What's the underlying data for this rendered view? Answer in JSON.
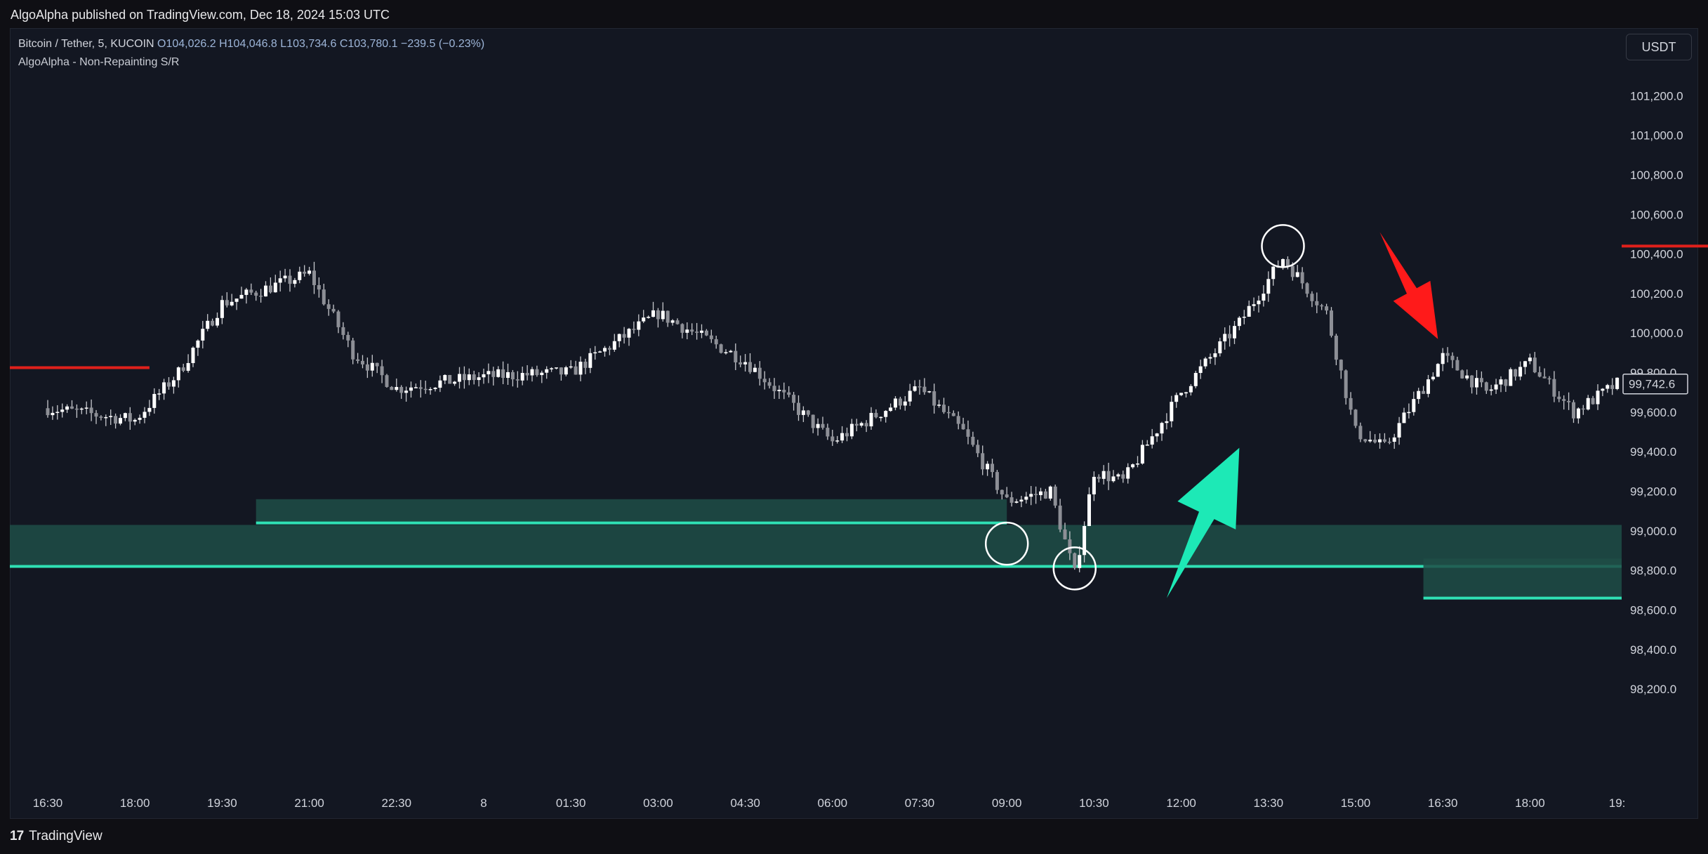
{
  "header": {
    "published": "AlgoAlpha published on TradingView.com, Dec 18, 2024 15:03 UTC"
  },
  "legend": {
    "symbol": "Bitcoin / Tether, 5, KUCOIN",
    "open": "O104,026.2",
    "high": "H104,046.8",
    "low": "L103,734.6",
    "close": "C103,780.1",
    "change": "−239.5 (−0.23%)",
    "indicator": "AlgoAlpha - Non-Repainting S/R"
  },
  "currency": "USDT",
  "footer": {
    "brand": "TradingView",
    "logo": "17"
  },
  "colors": {
    "background": "#131722",
    "resistance": "#e0201b",
    "support": "#2fe0b4",
    "support_zone": "#1f4d47",
    "candle": "#c7c9ce",
    "arrow_up": "#1de9b6",
    "arrow_down": "#ff1a1a",
    "circle": "#ffffff"
  },
  "chart_data": {
    "type": "candlestick",
    "price_axis": {
      "ticks": [
        "101,200.0",
        "101,000.0",
        "100,800.0",
        "100,600.0",
        "100,400.0",
        "100,200.0",
        "100,000.0",
        "99,800.0",
        "99,600.0",
        "99,400.0",
        "99,200.0",
        "99,000.0",
        "98,800.0",
        "98,600.0",
        "98,400.0",
        "98,200.0"
      ],
      "tick_values": [
        101200,
        101000,
        100800,
        100600,
        100400,
        100200,
        100000,
        99800,
        99600,
        99400,
        99200,
        99000,
        98800,
        98600,
        98400,
        98200
      ],
      "range": [
        98000,
        101400
      ]
    },
    "time_axis": {
      "ticks": [
        "16:30",
        "18:00",
        "19:30",
        "21:00",
        "22:30",
        "8",
        "01:30",
        "03:00",
        "04:30",
        "06:00",
        "07:30",
        "09:00",
        "10:30",
        "12:00",
        "13:30",
        "15:00",
        "16:30",
        "18:00",
        "19:"
      ],
      "range": [
        "16:30",
        "19:"
      ]
    },
    "last_price": "99,742.6",
    "last_price_value": 99742.6,
    "path": [
      [
        "16:30",
        99620
      ],
      [
        "18:00",
        99560
      ],
      [
        "18:45",
        99800
      ],
      [
        "19:30",
        100150
      ],
      [
        "21:00",
        100300
      ],
      [
        "21:45",
        99900
      ],
      [
        "22:30",
        99720
      ],
      [
        "8",
        99780
      ],
      [
        "01:30",
        99800
      ],
      [
        "02:30",
        100000
      ],
      [
        "03:00",
        100100
      ],
      [
        "04:30",
        99860
      ],
      [
        "06:00",
        99450
      ],
      [
        "07:30",
        99720
      ],
      [
        "08:15",
        99500
      ],
      [
        "09:00",
        99150
      ],
      [
        "09:45",
        99200
      ],
      [
        "10:10",
        98780
      ],
      [
        "10:30",
        99300
      ],
      [
        "11:00",
        99250
      ],
      [
        "12:00",
        99700
      ],
      [
        "13:00",
        100050
      ],
      [
        "13:45",
        100380
      ],
      [
        "14:30",
        100100
      ],
      [
        "15:00",
        99500
      ],
      [
        "15:30",
        99420
      ],
      [
        "16:30",
        99880
      ],
      [
        "17:15",
        99700
      ],
      [
        "18:00",
        99850
      ],
      [
        "18:45",
        99600
      ],
      [
        "19:",
        99742.6
      ]
    ],
    "resistance_levels": [
      {
        "price": 99825,
        "from": "16:30",
        "to": "18:15"
      },
      {
        "price": 100440,
        "from": "02:55",
        "to": "19:"
      }
    ],
    "support_zones": [
      {
        "top": 99160,
        "bottom": 99040,
        "from": "20:05",
        "to": "09:00"
      },
      {
        "top": 99030,
        "bottom": 98820,
        "from": "16:30",
        "to": "19:"
      },
      {
        "top": 98860,
        "bottom": 98660,
        "from": "16:10",
        "to": "19:"
      }
    ],
    "annotations": [
      {
        "kind": "circle",
        "time": "09:00",
        "price": 98935
      },
      {
        "kind": "circle",
        "time": "10:10",
        "price": 98810
      },
      {
        "kind": "circle",
        "time": "13:45",
        "price": 100440
      },
      {
        "kind": "arrow-up",
        "from": [
          "11:45",
          98660
        ],
        "to": [
          "13:00",
          99420
        ]
      },
      {
        "kind": "arrow-down",
        "from": [
          "15:25",
          100510
        ],
        "to": [
          "16:25",
          99970
        ]
      }
    ]
  }
}
